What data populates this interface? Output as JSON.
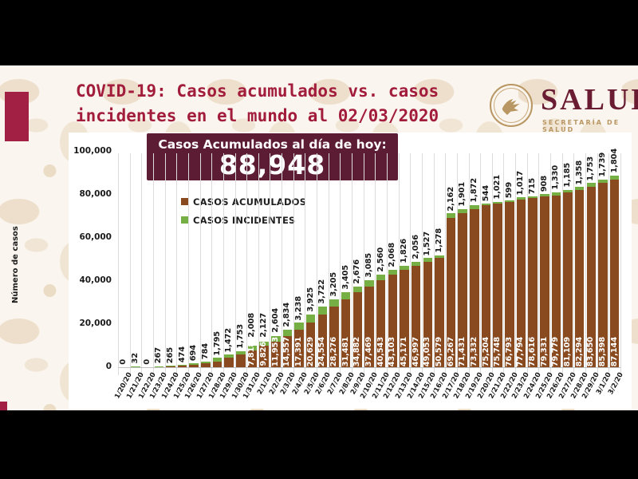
{
  "header": {
    "title_line1": "COVID-19: Casos acumulados vs. casos",
    "title_line2": "incidentes en el mundo al 02/03/2020",
    "logo": {
      "wordmark": "SALUD",
      "subtitle": "SECRETARÍA DE SALUD"
    }
  },
  "banner": {
    "label": "Casos Acumulados al día de hoy:",
    "value": "88,948"
  },
  "legend": [
    {
      "label": "CASOS ACUMULADOS",
      "key": "accumulated"
    },
    {
      "label": "CASOS INCIDENTES",
      "key": "incident"
    }
  ],
  "colors": {
    "accumulated": "#8A4A1F",
    "incident": "#76B045",
    "banner_bg": "#5C1C33",
    "title_text": "#A21C3C",
    "accent_bar": "#A22044",
    "logo_maroon": "#691C32",
    "logo_gold": "#B99763",
    "letterbox": "#000000"
  },
  "chart_data": {
    "type": "bar",
    "stacked": true,
    "ylabel": "Número de casos",
    "ylim": [
      0,
      100000
    ],
    "ytick_values": [
      0,
      20000,
      40000,
      60000,
      80000,
      100000
    ],
    "ytick_labels": [
      "0",
      "20,000",
      "40,000",
      "60,000",
      "80,000",
      "100,000"
    ],
    "grid": "vertical",
    "legend_position": "top-left-inside",
    "series_names": [
      "CASOS ACUMULADOS",
      "CASOS INCIDENTES"
    ],
    "bars": [
      {
        "date": "1/20/20",
        "cumulative": null,
        "incident": 0
      },
      {
        "date": "1/21/20",
        "cumulative": null,
        "incident": 32
      },
      {
        "date": "1/22/20",
        "cumulative": null,
        "incident": 0
      },
      {
        "date": "1/23/20",
        "cumulative": null,
        "incident": 267
      },
      {
        "date": "1/24/20",
        "cumulative": null,
        "incident": 265
      },
      {
        "date": "1/25/20",
        "cumulative": null,
        "incident": 474
      },
      {
        "date": "1/26/20",
        "cumulative": null,
        "incident": 694
      },
      {
        "date": "1/27/20",
        "cumulative": null,
        "incident": 784
      },
      {
        "date": "1/28/20",
        "cumulative": null,
        "incident": 1795
      },
      {
        "date": "1/29/20",
        "cumulative": null,
        "incident": 1472
      },
      {
        "date": "1/30/20",
        "cumulative": null,
        "incident": 1753
      },
      {
        "date": "1/31/20",
        "cumulative": 7818,
        "incident": 2008
      },
      {
        "date": "2/1/20",
        "cumulative": 9826,
        "incident": 2127
      },
      {
        "date": "2/2/20",
        "cumulative": 11953,
        "incident": 2604
      },
      {
        "date": "2/3/20",
        "cumulative": 14557,
        "incident": 2834
      },
      {
        "date": "2/4/20",
        "cumulative": 17391,
        "incident": 3238
      },
      {
        "date": "2/5/20",
        "cumulative": 20629,
        "incident": 3925
      },
      {
        "date": "2/6/20",
        "cumulative": 24554,
        "incident": 3722
      },
      {
        "date": "2/7/20",
        "cumulative": 28276,
        "incident": 3205
      },
      {
        "date": "2/8/20",
        "cumulative": 31481,
        "incident": 3405
      },
      {
        "date": "2/9/20",
        "cumulative": 34882,
        "incident": 2676
      },
      {
        "date": "2/10/20",
        "cumulative": 37469,
        "incident": 3085
      },
      {
        "date": "2/11/20",
        "cumulative": 40543,
        "incident": 2560
      },
      {
        "date": "2/12/20",
        "cumulative": 43103,
        "incident": 2068
      },
      {
        "date": "2/13/20",
        "cumulative": 45171,
        "incident": 1826
      },
      {
        "date": "2/14/20",
        "cumulative": 46997,
        "incident": 2056
      },
      {
        "date": "2/15/20",
        "cumulative": 49053,
        "incident": 1527
      },
      {
        "date": "2/16/20",
        "cumulative": 50579,
        "incident": 1278
      },
      {
        "date": "2/17/20",
        "cumulative": 69267,
        "incident": 2162
      },
      {
        "date": "2/18/20",
        "cumulative": 71431,
        "incident": 1901
      },
      {
        "date": "2/19/20",
        "cumulative": 73332,
        "incident": 1872
      },
      {
        "date": "2/20/20",
        "cumulative": 75204,
        "incident": 544
      },
      {
        "date": "2/21/20",
        "cumulative": 75748,
        "incident": 1021
      },
      {
        "date": "2/22/20",
        "cumulative": 76793,
        "incident": 599
      },
      {
        "date": "2/23/20",
        "cumulative": 77794,
        "incident": 1017
      },
      {
        "date": "2/24/20",
        "cumulative": 78616,
        "incident": 715
      },
      {
        "date": "2/25/20",
        "cumulative": 79331,
        "incident": 908
      },
      {
        "date": "2/26/20",
        "cumulative": 79779,
        "incident": 1330
      },
      {
        "date": "2/27/20",
        "cumulative": 81109,
        "incident": 1185
      },
      {
        "date": "2/28/20",
        "cumulative": 82294,
        "incident": 1358
      },
      {
        "date": "2/29/20",
        "cumulative": 83650,
        "incident": 1753
      },
      {
        "date": "3/1/20",
        "cumulative": 85398,
        "incident": 1739
      },
      {
        "date": "3/2/20",
        "cumulative": 87144,
        "incident": 1804
      }
    ]
  }
}
